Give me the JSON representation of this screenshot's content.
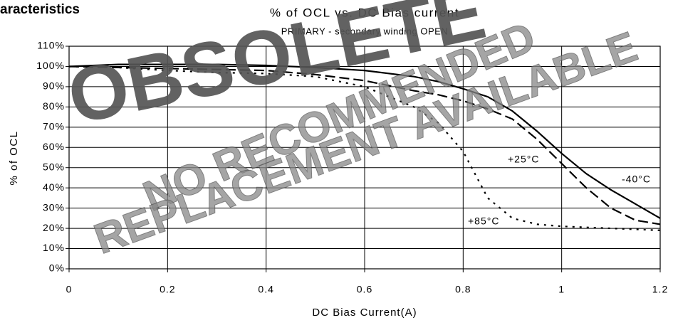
{
  "chart_data": {
    "type": "line",
    "heading": "aracteristics",
    "title": "% of OCL vs. DC Bias current",
    "subtitle": "PRIMARY - secondary winding OPEN",
    "xlabel": "DC Bias Current(A)",
    "ylabel": "% of OCL",
    "x": [
      0,
      0.1,
      0.2,
      0.3,
      0.4,
      0.5,
      0.6,
      0.7,
      0.75,
      0.8,
      0.85,
      0.9,
      0.95,
      1.0,
      1.05,
      1.1,
      1.15,
      1.2
    ],
    "series": [
      {
        "name": "-40°C",
        "color": "#000000",
        "dash": "solid",
        "values": [
          100,
          101,
          101,
          101,
          100.5,
          99.5,
          98,
          95,
          92.5,
          89,
          85,
          78,
          68,
          57,
          47,
          39,
          32,
          25
        ]
      },
      {
        "name": "+25°C",
        "color": "#000000",
        "dash": "dashed",
        "values": [
          100,
          99.5,
          99,
          98.5,
          98,
          96,
          93,
          88,
          86,
          83,
          79,
          74,
          64,
          52,
          40,
          30,
          24,
          22
        ]
      },
      {
        "name": "+85°C",
        "color": "#000000",
        "dash": "dotted",
        "values": [
          100,
          99.5,
          98,
          97,
          96.5,
          95,
          90,
          80,
          72,
          58,
          35,
          25,
          22,
          21,
          20.5,
          20,
          19.5,
          19
        ]
      }
    ],
    "xlim": [
      0,
      1.2
    ],
    "xticks": [
      0,
      0.2,
      0.4,
      0.6,
      0.8,
      1,
      1.2
    ],
    "ylim": [
      0,
      110
    ],
    "yticks": [
      {
        "value": 0,
        "label": "0%"
      },
      {
        "value": 10,
        "label": "10%"
      },
      {
        "value": 20,
        "label": "20%"
      },
      {
        "value": 30,
        "label": "30%"
      },
      {
        "value": 40,
        "label": "40%"
      },
      {
        "value": 50,
        "label": "50%"
      },
      {
        "value": 60,
        "label": "60%"
      },
      {
        "value": 70,
        "label": "70%"
      },
      {
        "value": 80,
        "label": "80%"
      },
      {
        "value": 90,
        "label": "90%"
      },
      {
        "value": 100,
        "label": "100%"
      },
      {
        "value": 110,
        "label": "110%"
      }
    ],
    "grid": true,
    "watermarks": [
      "OBSOLETE",
      "NO RECOMMENDED",
      "REPLACEMENT AVAILABLE"
    ]
  }
}
